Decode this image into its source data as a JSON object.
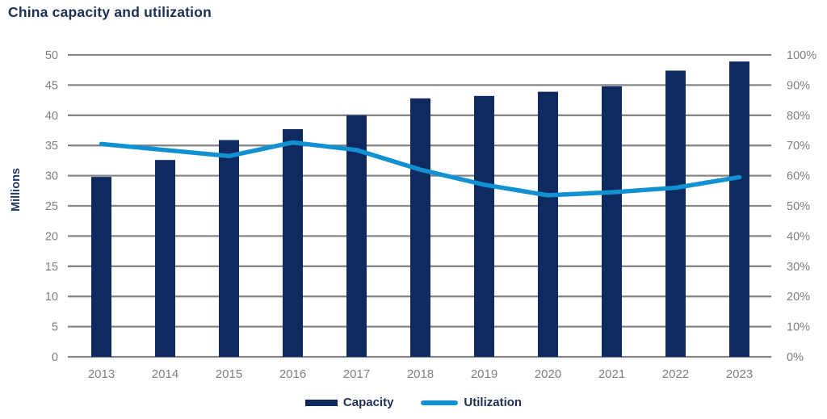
{
  "title": "China capacity and utilization",
  "colors": {
    "capacity_bar": "#0f2a61",
    "utilization_line": "#1191d2",
    "gridline": "#858585",
    "tick_label": "#7f7f7f",
    "title_text": "#1e2f55",
    "axis_title_text": "#1f3864",
    "legend_text": "#1e2f55"
  },
  "chart_data": {
    "type": "bar",
    "subtype": "bar+line combo, dual axis",
    "title": "China capacity and utilization",
    "categories": [
      "2013",
      "2014",
      "2015",
      "2016",
      "2017",
      "2018",
      "2019",
      "2020",
      "2021",
      "2022",
      "2023"
    ],
    "series": [
      {
        "name": "Capacity",
        "type": "bar",
        "axis": "left",
        "values": [
          29.8,
          32.6,
          35.9,
          37.7,
          40.0,
          42.8,
          43.2,
          43.9,
          44.8,
          47.4,
          48.9
        ]
      },
      {
        "name": "Utilization",
        "type": "line",
        "axis": "right",
        "values": [
          70.5,
          68.5,
          66.5,
          71.0,
          68.5,
          62.0,
          57.0,
          53.5,
          54.5,
          56.0,
          59.5
        ]
      }
    ],
    "left_axis": {
      "label": "Millions",
      "min": 0,
      "max": 50,
      "step": 5,
      "ticks": [
        "0",
        "5",
        "10",
        "15",
        "20",
        "25",
        "30",
        "35",
        "40",
        "45",
        "50"
      ]
    },
    "right_axis": {
      "min": 0,
      "max": 100,
      "step": 10,
      "suffix": "%",
      "ticks": [
        "0%",
        "10%",
        "20%",
        "30%",
        "40%",
        "50%",
        "60%",
        "70%",
        "80%",
        "90%",
        "100%"
      ]
    },
    "grid": "horizontal",
    "legend_position": "bottom"
  }
}
